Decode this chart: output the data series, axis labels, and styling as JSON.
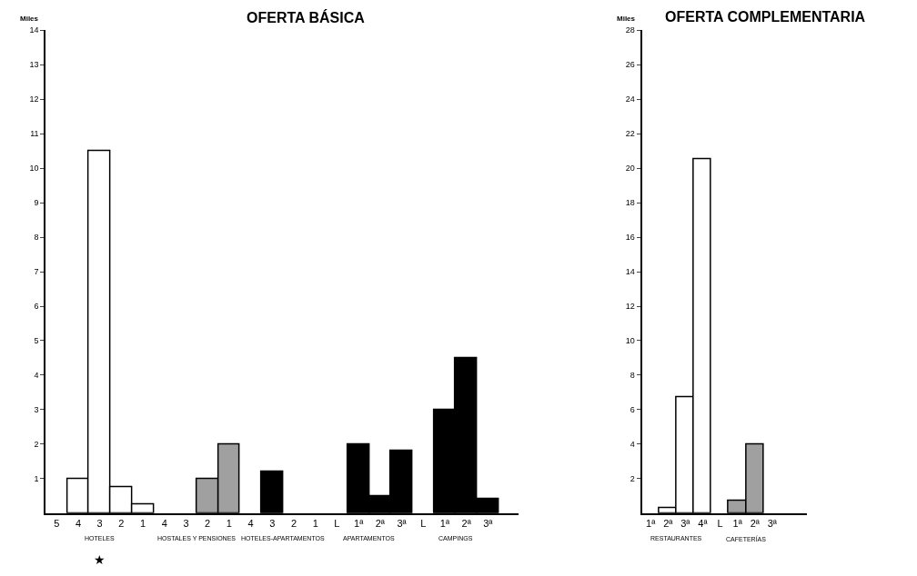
{
  "chart_data": [
    {
      "type": "bar",
      "title": "OFERTA BÁSICA",
      "ylabel": "Miles",
      "categories": [
        "5",
        "4",
        "3",
        "2",
        "1",
        "4",
        "3",
        "2",
        "1",
        "4",
        "3",
        "2",
        "1",
        "L",
        "1ª",
        "2ª",
        "3ª",
        "L",
        "1ª",
        "2ª",
        "3ª"
      ],
      "values": [
        0,
        1.0,
        10.5,
        0.75,
        0.25,
        0,
        0,
        1.0,
        2.0,
        0,
        1.2,
        0,
        0,
        0,
        2.0,
        0.5,
        1.8,
        0,
        3.0,
        4.5,
        0.4
      ],
      "colors": [
        "#ffffff",
        "#ffffff",
        "#ffffff",
        "#ffffff",
        "#ffffff",
        "#a0a0a0",
        "#a0a0a0",
        "#a0a0a0",
        "#a0a0a0",
        "#000000",
        "#000000",
        "#000000",
        "#000000",
        "#000000",
        "#000000",
        "#000000",
        "#000000",
        "#000000",
        "#000000",
        "#000000",
        "#000000"
      ],
      "ylim": [
        0,
        14
      ],
      "yticks": [
        1,
        2,
        3,
        4,
        5,
        6,
        7,
        8,
        9,
        10,
        11,
        12,
        13,
        14
      ],
      "annotations": [
        "HOTELES",
        "HOSTALES Y PENSIONES",
        "HOTELES-APARTAMENTOS",
        "APARTAMENTOS",
        "CAMPINGS",
        "★"
      ]
    },
    {
      "type": "bar",
      "title": "OFERTA COMPLEMENTARIA",
      "ylabel": "Miles",
      "categories": [
        "1ª",
        "2ª",
        "3ª",
        "4ª",
        "L",
        "1ª",
        "2ª",
        "3ª"
      ],
      "values": [
        null,
        0.3,
        6.7,
        20.5,
        0,
        0.7,
        4.0,
        0
      ],
      "colors": [
        "#ffffff",
        "#ffffff",
        "#ffffff",
        "#ffffff",
        "#a0a0a0",
        "#a0a0a0",
        "#a0a0a0",
        "#a0a0a0"
      ],
      "ylim": [
        0,
        28
      ],
      "yticks": [
        2,
        4,
        6,
        8,
        10,
        12,
        14,
        16,
        18,
        20,
        22,
        24,
        26,
        28
      ],
      "annotations": [
        "RESTAURANTES",
        "CAFETERÍAS"
      ]
    }
  ]
}
